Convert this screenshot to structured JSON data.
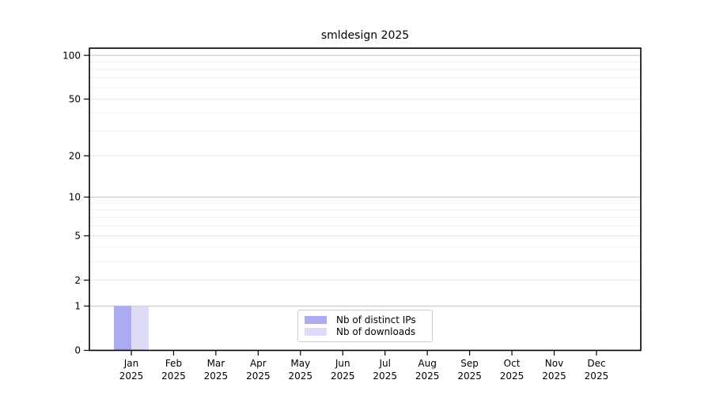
{
  "window": {
    "background": "#ffffff"
  },
  "chart_data": {
    "type": "bar",
    "title": "smldesign 2025",
    "categories": [
      "Jan",
      "Feb",
      "Mar",
      "Apr",
      "May",
      "Jun",
      "Jul",
      "Aug",
      "Sep",
      "Oct",
      "Nov",
      "Dec"
    ],
    "x_year_label": "2025",
    "series": [
      {
        "name": "Nb of distinct IPs",
        "color": "#ababf4",
        "values": [
          1,
          0,
          0,
          0,
          0,
          0,
          0,
          0,
          0,
          0,
          0,
          0
        ]
      },
      {
        "name": "Nb of downloads",
        "color": "#dcdcf7",
        "values": [
          1,
          0,
          0,
          0,
          0,
          0,
          0,
          0,
          0,
          0,
          0,
          0
        ]
      }
    ],
    "yscale": "log1p",
    "ylim": [
      0,
      112
    ],
    "ytick_values": [
      0,
      1,
      2,
      5,
      10,
      20,
      50,
      100
    ],
    "ytick_labels": [
      "0",
      "1",
      "2",
      "5",
      "10",
      "20",
      "50",
      "100"
    ],
    "grid": true,
    "legend": {
      "position": "lower center"
    },
    "colors": {
      "axis": "#000000",
      "tick_label": "#000000",
      "grid_major": "#c3c3c3",
      "grid_labeled": "#e4e4e4",
      "grid_minor": "#f0f0f0",
      "legend_border": "#cccccc",
      "legend_bg": "#ffffff"
    }
  }
}
